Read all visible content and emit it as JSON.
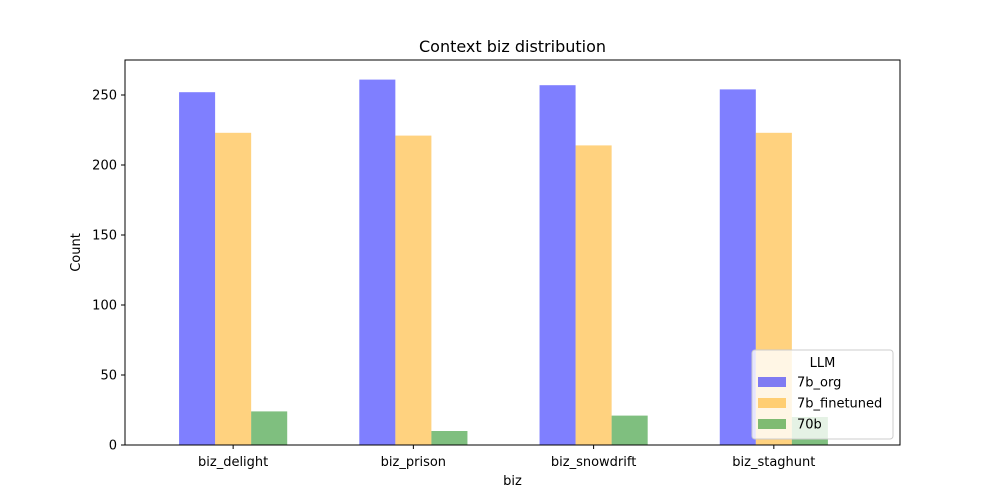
{
  "chart_data": {
    "type": "bar",
    "title": "Context biz distribution",
    "xlabel": "biz",
    "ylabel": "Count",
    "categories": [
      "biz_delight",
      "biz_prison",
      "biz_snowdrift",
      "biz_staghunt"
    ],
    "series": [
      {
        "name": "7b_org",
        "values": [
          252,
          261,
          257,
          254
        ],
        "color": "#0000ff"
      },
      {
        "name": "7b_finetuned",
        "values": [
          223,
          221,
          214,
          223
        ],
        "color": "#ffa500"
      },
      {
        "name": "70b",
        "values": [
          24,
          10,
          21,
          20
        ],
        "color": "#008000"
      }
    ],
    "bar_opacity": 0.5,
    "ylim": [
      0,
      275
    ],
    "yticks": [
      0,
      50,
      100,
      150,
      200,
      250
    ],
    "grid": false,
    "legend": {
      "title": "LLM",
      "placement": "lower-right"
    }
  }
}
